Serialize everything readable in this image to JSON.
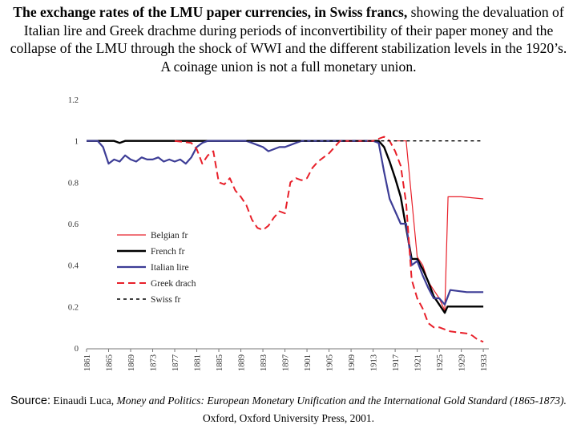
{
  "title": {
    "bold_part": "The exchange rates of the LMU paper currencies, in Swiss francs,",
    "rest": " showing the devaluation of Italian lire and Greek drachme during periods of inconvertibility of their paper money and the collapse of the LMU through the shock of  WWI and the different stabilization levels in the 1920’s. A coinage union is not a full monetary union."
  },
  "source": {
    "label": "Source:",
    "author": " Einaudi Luca,",
    "work": " Money and Politics: European Monetary Unification and the International Gold Standard (1865-1873).",
    "publisher": " Oxford, Oxford University Press, 2001."
  },
  "chart_data": {
    "type": "line",
    "title": "",
    "xlabel": "",
    "ylabel": "",
    "xlim": [
      1861,
      1934
    ],
    "ylim": [
      0,
      1.2
    ],
    "x_ticks": [
      "1861",
      "1865",
      "1869",
      "1873",
      "1877",
      "1881",
      "1885",
      "1889",
      "1893",
      "1897",
      "1901",
      "1905",
      "1909",
      "1913",
      "1917",
      "1921",
      "1925",
      "1929",
      "1933"
    ],
    "y_ticks": [
      "0",
      "0.2",
      "0.4",
      "0.6",
      "0.8",
      "1",
      "1.2"
    ],
    "grid": false,
    "legend_position": "inside-bottom-left",
    "series": [
      {
        "name": "Belgian fr",
        "color": "#e8202a",
        "dash": "none",
        "width": 1.2,
        "points": [
          [
            1917,
            1.0
          ],
          [
            1919,
            1.0
          ],
          [
            1920,
            0.72
          ],
          [
            1921,
            0.44
          ],
          [
            1922,
            0.4
          ],
          [
            1923,
            0.32
          ],
          [
            1924,
            0.28
          ],
          [
            1925,
            0.24
          ],
          [
            1926,
            0.18
          ],
          [
            1926.6,
            0.73
          ],
          [
            1929,
            0.73
          ],
          [
            1933,
            0.72
          ]
        ]
      },
      {
        "name": "French fr",
        "color": "#000000",
        "dash": "none",
        "width": 2.4,
        "points": [
          [
            1861,
            1.0
          ],
          [
            1866,
            1.0
          ],
          [
            1867,
            0.99
          ],
          [
            1868,
            1.0
          ],
          [
            1913,
            1.0
          ],
          [
            1914,
            1.0
          ],
          [
            1915,
            0.97
          ],
          [
            1916,
            0.9
          ],
          [
            1917,
            0.82
          ],
          [
            1918,
            0.73
          ],
          [
            1919,
            0.58
          ],
          [
            1920,
            0.43
          ],
          [
            1921,
            0.43
          ],
          [
            1922,
            0.38
          ],
          [
            1923,
            0.32
          ],
          [
            1924,
            0.25
          ],
          [
            1925,
            0.21
          ],
          [
            1926,
            0.17
          ],
          [
            1926.5,
            0.2
          ],
          [
            1927,
            0.2
          ],
          [
            1933,
            0.2
          ]
        ]
      },
      {
        "name": "Italian lire",
        "color": "#3d3d96",
        "dash": "none",
        "width": 2.2,
        "points": [
          [
            1861,
            1.0
          ],
          [
            1863,
            1.0
          ],
          [
            1864,
            0.97
          ],
          [
            1865,
            0.89
          ],
          [
            1866,
            0.91
          ],
          [
            1867,
            0.9
          ],
          [
            1868,
            0.93
          ],
          [
            1869,
            0.91
          ],
          [
            1870,
            0.9
          ],
          [
            1871,
            0.92
          ],
          [
            1872,
            0.91
          ],
          [
            1873,
            0.91
          ],
          [
            1874,
            0.92
          ],
          [
            1875,
            0.9
          ],
          [
            1876,
            0.91
          ],
          [
            1877,
            0.9
          ],
          [
            1878,
            0.91
          ],
          [
            1879,
            0.89
          ],
          [
            1880,
            0.92
          ],
          [
            1881,
            0.97
          ],
          [
            1882,
            0.99
          ],
          [
            1883,
            1.0
          ],
          [
            1884,
            1.0
          ],
          [
            1890,
            1.0
          ],
          [
            1891,
            0.99
          ],
          [
            1892,
            0.98
          ],
          [
            1893,
            0.97
          ],
          [
            1894,
            0.95
          ],
          [
            1895,
            0.96
          ],
          [
            1896,
            0.97
          ],
          [
            1897,
            0.97
          ],
          [
            1898,
            0.98
          ],
          [
            1899,
            0.99
          ],
          [
            1900,
            1.0
          ],
          [
            1913,
            1.0
          ],
          [
            1914,
            0.99
          ],
          [
            1915,
            0.85
          ],
          [
            1916,
            0.72
          ],
          [
            1917,
            0.66
          ],
          [
            1918,
            0.6
          ],
          [
            1919,
            0.6
          ],
          [
            1920,
            0.4
          ],
          [
            1921,
            0.42
          ],
          [
            1922,
            0.35
          ],
          [
            1923,
            0.29
          ],
          [
            1924,
            0.24
          ],
          [
            1925,
            0.24
          ],
          [
            1926,
            0.21
          ],
          [
            1927,
            0.28
          ],
          [
            1930,
            0.27
          ],
          [
            1933,
            0.27
          ]
        ]
      },
      {
        "name": "Greek drach",
        "color": "#e8202a",
        "dash": "9,5",
        "width": 2.0,
        "points": [
          [
            1877,
            1.0
          ],
          [
            1880,
            0.99
          ],
          [
            1881,
            0.96
          ],
          [
            1882,
            0.89
          ],
          [
            1883,
            0.93
          ],
          [
            1884,
            0.95
          ],
          [
            1885,
            0.8
          ],
          [
            1886,
            0.79
          ],
          [
            1887,
            0.82
          ],
          [
            1888,
            0.76
          ],
          [
            1889,
            0.73
          ],
          [
            1890,
            0.69
          ],
          [
            1891,
            0.62
          ],
          [
            1892,
            0.58
          ],
          [
            1893,
            0.57
          ],
          [
            1894,
            0.59
          ],
          [
            1895,
            0.63
          ],
          [
            1896,
            0.66
          ],
          [
            1897,
            0.65
          ],
          [
            1898,
            0.8
          ],
          [
            1899,
            0.82
          ],
          [
            1900,
            0.81
          ],
          [
            1901,
            0.82
          ],
          [
            1902,
            0.87
          ],
          [
            1903,
            0.9
          ],
          [
            1904,
            0.92
          ],
          [
            1905,
            0.94
          ],
          [
            1906,
            0.97
          ],
          [
            1907,
            1.0
          ],
          [
            1913,
            1.0
          ],
          [
            1914,
            1.01
          ],
          [
            1915,
            1.02
          ],
          [
            1916,
            1.0
          ],
          [
            1917,
            0.95
          ],
          [
            1918,
            0.88
          ],
          [
            1919,
            0.7
          ],
          [
            1920,
            0.33
          ],
          [
            1921,
            0.24
          ],
          [
            1922,
            0.19
          ],
          [
            1923,
            0.12
          ],
          [
            1924,
            0.1
          ],
          [
            1925,
            0.1
          ],
          [
            1926,
            0.09
          ],
          [
            1927,
            0.08
          ],
          [
            1930,
            0.07
          ],
          [
            1931,
            0.06
          ],
          [
            1932,
            0.04
          ],
          [
            1933,
            0.03
          ]
        ]
      },
      {
        "name": "Swiss fr",
        "color": "#000000",
        "dash": "4,4",
        "width": 1.4,
        "points": [
          [
            1890,
            1.0
          ],
          [
            1933,
            1.0
          ]
        ]
      }
    ]
  }
}
